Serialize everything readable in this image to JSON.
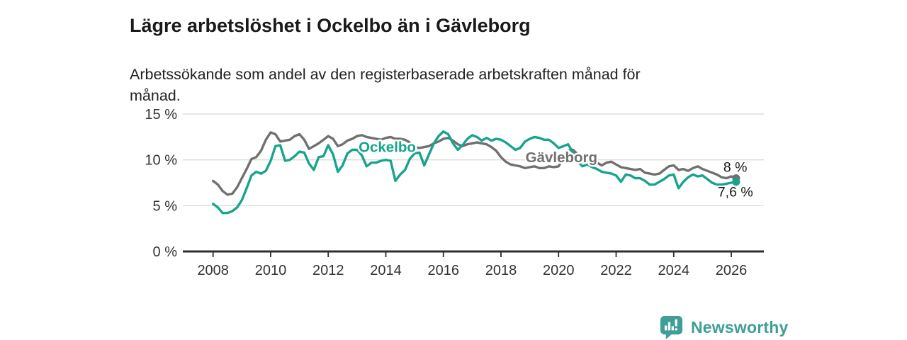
{
  "header": {
    "title": "Lägre arbetslöshet i Ockelbo än i Gävleborg",
    "subtitle_lines": [
      "Arbetssökande som andel av den registerbaserade arbetskraften månad för",
      "månad."
    ]
  },
  "chart_data": {
    "type": "line",
    "title": "Lägre arbetslöshet i Ockelbo än i Gävleborg",
    "subtitle": "Arbetssökande som andel av den registerbaserade arbetskraften månad för månad.",
    "grid": true,
    "ylim": [
      0,
      15
    ],
    "xlim_years": [
      2006.95,
      2027.1
    ],
    "x_start": 2008.0,
    "x_step_years": 0.16667,
    "y_ticks": [
      {
        "value": 0,
        "label": "0 %"
      },
      {
        "value": 5,
        "label": "5 %"
      },
      {
        "value": 10,
        "label": "10 %"
      },
      {
        "value": 15,
        "label": "15 %"
      }
    ],
    "x_ticks": [
      {
        "value": 2008,
        "label": "2008"
      },
      {
        "value": 2010,
        "label": "2010"
      },
      {
        "value": 2012,
        "label": "2012"
      },
      {
        "value": 2014,
        "label": "2014"
      },
      {
        "value": 2016,
        "label": "2016"
      },
      {
        "value": 2018,
        "label": "2018"
      },
      {
        "value": 2020,
        "label": "2020"
      },
      {
        "value": 2022,
        "label": "2022"
      },
      {
        "value": 2024,
        "label": "2024"
      },
      {
        "value": 2026,
        "label": "2026"
      }
    ],
    "series": [
      {
        "name": "Gävleborg",
        "color": "#707070",
        "end_label": "8 %",
        "label_anchor": {
          "year": 2020.1,
          "value": 10.3
        },
        "values": [
          7.7,
          7.3,
          6.6,
          6.2,
          6.3,
          7.0,
          8.0,
          9.0,
          10.1,
          10.3,
          11.0,
          12.2,
          13.0,
          12.8,
          12.0,
          12.1,
          12.2,
          12.6,
          12.8,
          12.2,
          11.2,
          11.5,
          11.8,
          12.2,
          12.6,
          12.3,
          11.5,
          11.7,
          12.1,
          12.3,
          12.6,
          12.7,
          12.5,
          12.4,
          12.3,
          12.2,
          12.4,
          12.5,
          12.3,
          12.3,
          12.2,
          11.9,
          11.4,
          11.3,
          11.4,
          11.5,
          11.8,
          12.0,
          12.3,
          12.4,
          12.1,
          11.7,
          11.5,
          11.7,
          11.8,
          11.9,
          11.8,
          11.7,
          11.4,
          11.0,
          10.3,
          9.8,
          9.5,
          9.4,
          9.3,
          9.1,
          9.2,
          9.3,
          9.1,
          9.1,
          9.3,
          9.2,
          9.3,
          10.2,
          11.0,
          11.1,
          10.6,
          10.2,
          9.9,
          9.8,
          9.7,
          9.4,
          9.7,
          9.8,
          9.5,
          9.2,
          9.1,
          9.0,
          8.9,
          9.0,
          8.6,
          8.5,
          8.4,
          8.5,
          8.9,
          9.3,
          9.4,
          8.9,
          9.0,
          8.8,
          9.1,
          9.3,
          9.0,
          8.8,
          8.6,
          8.4,
          8.1,
          8.0,
          8.2,
          8.0
        ]
      },
      {
        "name": "Ockelbo",
        "color": "#18a48c",
        "end_label": "7,6 %",
        "label_anchor": {
          "year": 2014.05,
          "value": 11.4
        },
        "values": [
          5.2,
          4.8,
          4.2,
          4.2,
          4.4,
          4.8,
          5.6,
          6.9,
          8.3,
          8.7,
          8.5,
          8.8,
          9.9,
          11.5,
          11.6,
          9.9,
          10.0,
          10.4,
          10.9,
          10.8,
          9.6,
          8.9,
          10.3,
          10.4,
          11.6,
          10.6,
          8.7,
          9.4,
          10.7,
          11.1,
          11.1,
          10.5,
          9.3,
          9.7,
          9.7,
          9.9,
          10.0,
          9.9,
          7.7,
          8.4,
          8.9,
          10.1,
          10.7,
          10.8,
          9.4,
          10.6,
          11.8,
          12.6,
          13.1,
          12.8,
          11.8,
          11.1,
          11.6,
          12.3,
          12.7,
          12.5,
          12.1,
          12.4,
          12.1,
          12.3,
          12.2,
          11.9,
          11.5,
          11.1,
          11.3,
          12.0,
          12.3,
          12.5,
          12.4,
          12.2,
          12.2,
          11.8,
          11.3,
          11.5,
          11.7,
          10.8,
          9.8,
          9.3,
          9.5,
          9.2,
          9.0,
          8.7,
          8.6,
          8.5,
          8.3,
          7.6,
          8.4,
          8.3,
          8.0,
          8.0,
          7.7,
          7.3,
          7.3,
          7.6,
          7.9,
          8.3,
          8.4,
          6.9,
          7.6,
          8.1,
          8.4,
          8.2,
          8.3,
          7.9,
          7.5,
          7.3,
          7.3,
          7.4,
          7.5,
          7.6
        ]
      }
    ],
    "colors": {
      "grid": "#dcdcdc",
      "axis": "#2e2e2e",
      "tick_text": "#333333",
      "end_label_text": "#1a1a1a"
    }
  },
  "footer": {
    "brand": "Newsworthy",
    "brand_color": "#3f9e97",
    "logo_icon": "bar-chart-speech-bubble-icon"
  }
}
